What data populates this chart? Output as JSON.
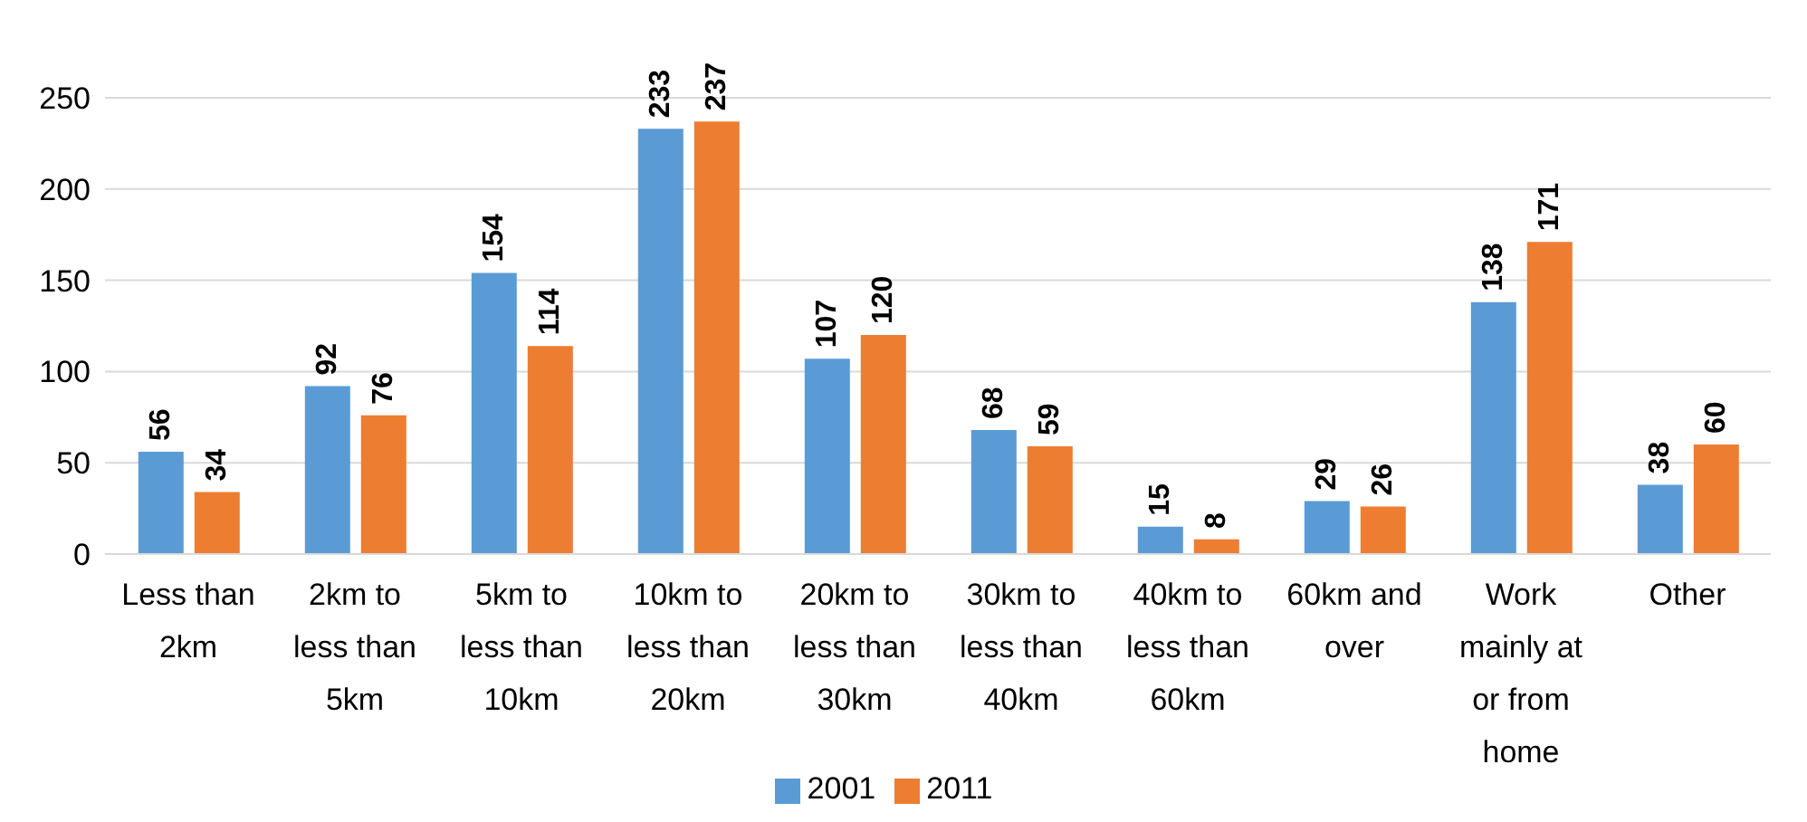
{
  "chart_data": {
    "type": "bar",
    "categories": [
      "Less than 2km",
      "2km to less than 5km",
      "5km to less than 10km",
      "10km to less than 20km",
      "20km to less than 30km",
      "30km to less than 40km",
      "40km to less than 60km",
      "60km and over",
      "Work mainly at or from home",
      "Other"
    ],
    "series": [
      {
        "name": "2001",
        "color": "#5b9bd5",
        "values": [
          56,
          92,
          154,
          233,
          107,
          68,
          15,
          29,
          138,
          38
        ]
      },
      {
        "name": "2011",
        "color": "#ed7d31",
        "values": [
          34,
          76,
          114,
          237,
          120,
          59,
          8,
          26,
          171,
          60
        ]
      }
    ],
    "ylim": [
      0,
      250
    ],
    "yticks": [
      0,
      50,
      100,
      150,
      200,
      250
    ],
    "grid": "y",
    "legend": "bottom",
    "data_labels": true
  }
}
